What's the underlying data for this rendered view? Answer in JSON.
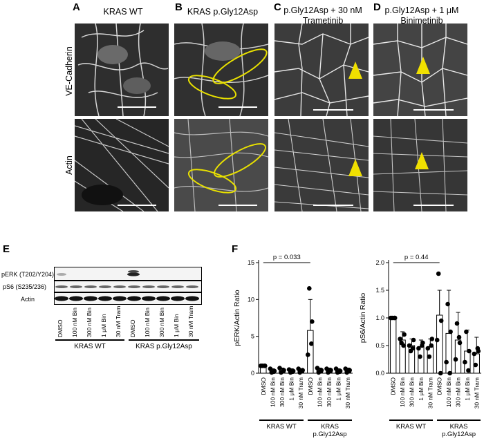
{
  "panel_letters": [
    "A",
    "B",
    "C",
    "D",
    "E",
    "F"
  ],
  "micro_columns": [
    {
      "title_lines": [
        "KRAS WT",
        ""
      ]
    },
    {
      "title_lines": [
        "KRAS p.Gly12Asp",
        ""
      ]
    },
    {
      "title_lines": [
        "p.Gly12Asp + 30 nM",
        "Trametinib"
      ]
    },
    {
      "title_lines": [
        "p.Gly12Asp + 1 μM",
        "Binimetinib"
      ]
    }
  ],
  "micro_rows": [
    "VE-Cadherin",
    "Actin"
  ],
  "blot": {
    "rows": [
      "pERK (T202/Y204)",
      "pS6 (S235/236)",
      "Actin"
    ],
    "lanes": [
      "DMSO",
      "100 nM Bin",
      "300 nM Bin",
      "1 μM Bin",
      "30 nM Tram",
      "DMSO",
      "100 nM Bin",
      "300 nM Bin",
      "1 μM Bin",
      "30 nM Tram"
    ],
    "groups": [
      "KRAS WT",
      "KRAS p.Gly12Asp"
    ]
  },
  "chart_data": [
    {
      "type": "bar",
      "ylabel": "pERK/Actin Ratio",
      "ylim": [
        0,
        15
      ],
      "yticks": [
        0,
        5,
        10,
        15
      ],
      "categories": [
        "DMSO",
        "100 nM Bin",
        "300 nM Bin",
        "1 μM Bin",
        "30 nM Tram",
        "DMSO",
        "100 nM Bin",
        "300 nM Bin",
        "1 μM Bin",
        "30 nM Tram"
      ],
      "values": [
        1.0,
        0.3,
        0.35,
        0.3,
        0.35,
        5.8,
        0.4,
        0.4,
        0.35,
        0.4
      ],
      "error_upper": [
        1.05,
        0.6,
        0.7,
        0.6,
        0.6,
        10.0,
        0.7,
        0.7,
        0.6,
        0.7
      ],
      "points": [
        [
          1.0,
          1.0,
          1.0,
          1.0
        ],
        [
          0.1,
          0.3,
          0.6,
          0.2
        ],
        [
          0.1,
          0.4,
          0.7,
          0.3
        ],
        [
          0.1,
          0.3,
          0.5,
          0.2
        ],
        [
          0.1,
          0.4,
          0.6,
          0.3
        ],
        [
          11.5,
          7.0,
          2.5,
          4.0
        ],
        [
          0.1,
          0.4,
          0.7,
          0.3
        ],
        [
          0.1,
          0.4,
          0.6,
          0.3
        ],
        [
          0.1,
          0.3,
          0.6,
          0.2
        ],
        [
          0.1,
          0.4,
          0.6,
          0.3
        ]
      ],
      "annotation": "p = 0.033",
      "groups": [
        "KRAS WT",
        "KRAS\np.Gly12Asp"
      ]
    },
    {
      "type": "bar",
      "ylabel": "pS6/Actin Ratio",
      "ylim": [
        0,
        2.0
      ],
      "yticks": [
        0.0,
        0.5,
        1.0,
        1.5,
        2.0
      ],
      "categories": [
        "DMSO",
        "100 nM Bin",
        "300 nM Bin",
        "1 μM Bin",
        "30 nM Tram",
        "DMSO",
        "100 nM Bin",
        "300 nM Bin",
        "1 μM Bin",
        "30 nM Tram"
      ],
      "values": [
        1.0,
        0.6,
        0.5,
        0.48,
        0.48,
        1.05,
        0.72,
        0.6,
        0.4,
        0.35
      ],
      "error_upper": [
        1.0,
        0.75,
        0.62,
        0.6,
        0.62,
        1.5,
        1.5,
        1.1,
        0.78,
        0.65
      ],
      "points": [
        [
          1.0,
          1.0,
          1.0,
          1.0
        ],
        [
          0.55,
          0.7,
          0.62,
          0.5
        ],
        [
          0.4,
          0.6,
          0.5,
          0.45
        ],
        [
          0.3,
          0.55,
          0.45,
          0.5
        ],
        [
          0.3,
          0.62,
          0.45,
          0.5
        ],
        [
          1.8,
          0.95,
          0.6,
          0.0
        ],
        [
          1.25,
          0.75,
          0.2,
          0.0
        ],
        [
          0.9,
          0.55,
          0.25,
          0.65
        ],
        [
          0.75,
          0.4,
          0.2,
          0.05
        ],
        [
          0.15,
          0.4,
          0.35,
          0.45
        ]
      ],
      "annotation": "p = 0.44",
      "groups": [
        "KRAS WT",
        "KRAS\np.Gly12Asp"
      ]
    }
  ]
}
